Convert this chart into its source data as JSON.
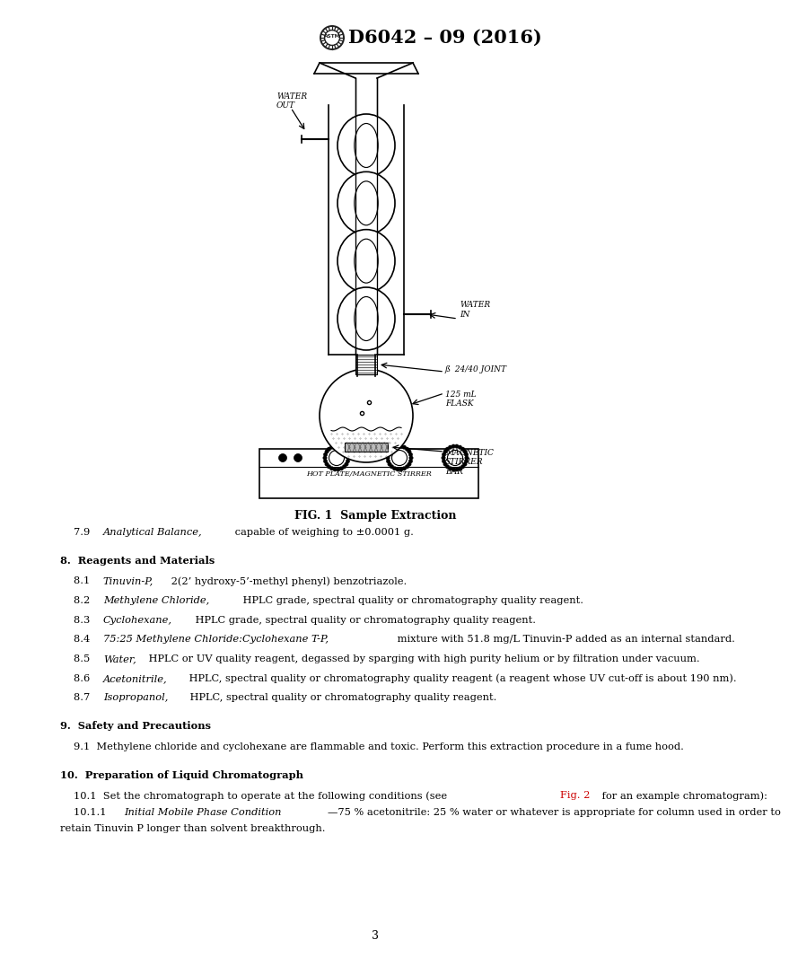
{
  "title": "D6042 – 09 (2016)",
  "bg_color": "#ffffff",
  "text_color": "#000000",
  "red_color": "#cc0000",
  "fig_caption": "FIG. 1  Sample Extraction",
  "section7_text_parts": [
    [
      "7.9  ",
      "italic",
      "Analytical Balance,"
    ],
    [
      " capable of weighing to ±0.0001 g.",
      "normal",
      ""
    ]
  ],
  "section8_header": "8.  Reagents and Materials",
  "section8_items": [
    [
      "8.1  ",
      "Tinuvin-P,",
      " 2(2’ hydroxy-5’-methyl phenyl) benzotriazole."
    ],
    [
      "8.2  ",
      "Methylene Chloride,",
      " HPLC grade, spectral quality or chromatography quality reagent."
    ],
    [
      "8.3  ",
      "Cyclohexane,",
      " HPLC grade, spectral quality or chromatography quality reagent."
    ],
    [
      "8.4  ",
      "75:25 Methylene Chloride:Cyclohexane T-P,",
      " mixture with 51.8 mg/L Tinuvin-P added as an internal standard."
    ],
    [
      "8.5  ",
      "Water,",
      " HPLC or UV quality reagent, degassed by sparging with high purity helium or by filtration under vacuum."
    ],
    [
      "8.6  ",
      "Acetonitrile,",
      " HPLC, spectral quality or chromatography quality reagent (a reagent whose UV cut-off is about 190 nm)."
    ],
    [
      "8.7  ",
      "Isopropanol,",
      " HPLC, spectral quality or chromatography quality reagent."
    ]
  ],
  "section9_header": "9.  Safety and Precautions",
  "section9_text": "9.1  Methylene chloride and cyclohexane are flammable and toxic. Perform this extraction procedure in a fume hood.",
  "section10_header": "10.  Preparation of Liquid Chromatograph",
  "section10_1_pre": "10.1  Set the chromatograph to operate at the following conditions (see ",
  "section10_1_red": "Fig. 2",
  "section10_1_post": " for an example chromatogram):",
  "section10_11_num": "10.1.1  ",
  "section10_11_italic": "Initial Mobile Phase Condition",
  "section10_11_rest": "—75 % acetonitrile: 25 % water or whatever is appropriate for column used in order to",
  "section10_11_line2": "retain Tinuvin P longer than solvent breakthrough.",
  "page_number": "3"
}
